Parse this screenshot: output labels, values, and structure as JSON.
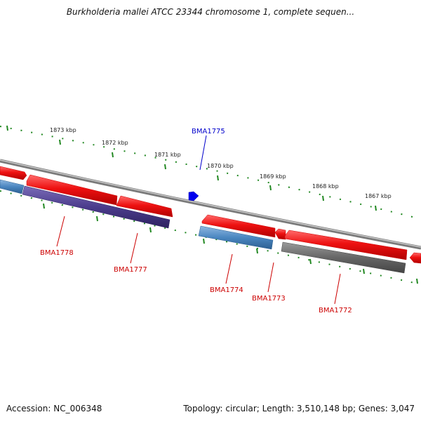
{
  "header": {
    "title": "Burkholderia mallei ATCC 23344 chromosome 1, complete sequen..."
  },
  "footer": {
    "accession": "Accession: NC_006348",
    "summary": "Topology: circular; Length: 3,510,148 bp; Genes: 3,047"
  },
  "ruler": {
    "labels": [
      "1873 kbp",
      "1872 kbp",
      "1871 kbp",
      "1870 kbp",
      "1869 kbp",
      "1868 kbp",
      "1867 kbp"
    ],
    "tick_color": "#228822"
  },
  "genes": {
    "bma1775": "BMA1775",
    "bma1778": "BMA1778",
    "bma1777": "BMA1777",
    "bma1774": "BMA1774",
    "bma1773": "BMA1773",
    "bma1772": "BMA1772"
  },
  "colors": {
    "label_forward": "#0000cc",
    "label_reverse": "#cc0000",
    "cds_red": "#ee1111",
    "cds_blue": "#4a86c0",
    "cds_purple": "#4b3c8c",
    "cds_gray": "#666666",
    "backbone": "#888888",
    "marker_blue": "#0000ee"
  }
}
